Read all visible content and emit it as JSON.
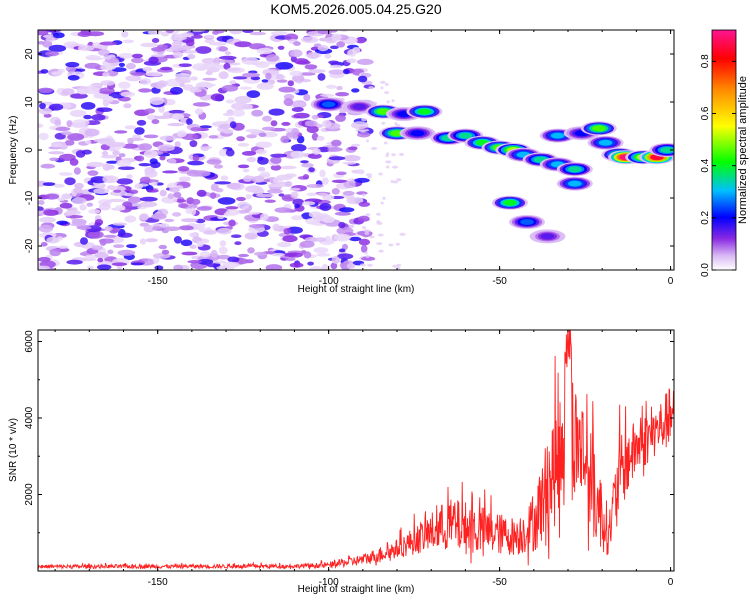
{
  "title": "KOM5.2026.005.04.25.G20",
  "colors": {
    "snr_line": "#ff2020",
    "axis": "#000000"
  },
  "chart_data": [
    {
      "type": "heatmap",
      "name": "spectrogram",
      "xlabel": "Height of straight line (km)",
      "ylabel": "Frequency (Hz)",
      "xlim": [
        -185,
        1
      ],
      "ylim": [
        -25,
        25
      ],
      "xticks": [
        -150,
        -100,
        -50,
        0
      ],
      "yticks": [
        -20,
        -10,
        0,
        10,
        20
      ],
      "xtick_labels": [
        "-150",
        "-100",
        "-50",
        "0"
      ],
      "ytick_labels": [
        "-20",
        "-10",
        "0",
        "10",
        "20"
      ],
      "noise_region_km": [
        -185,
        -88
      ],
      "features": [
        {
          "x": -100,
          "y": 9.5,
          "amp": 0.25
        },
        {
          "x": -91,
          "y": 9,
          "amp": 0.15
        },
        {
          "x": -84,
          "y": 8,
          "amp": 0.45
        },
        {
          "x": -78,
          "y": 7.5,
          "amp": 0.2
        },
        {
          "x": -72,
          "y": 8,
          "amp": 0.4
        },
        {
          "x": -80,
          "y": 3.5,
          "amp": 0.45
        },
        {
          "x": -74,
          "y": 3.5,
          "amp": 0.2
        },
        {
          "x": -65,
          "y": 2.5,
          "amp": 0.35
        },
        {
          "x": -60,
          "y": 3,
          "amp": 0.35
        },
        {
          "x": -55,
          "y": 1.5,
          "amp": 0.4
        },
        {
          "x": -50,
          "y": 0.5,
          "amp": 0.45
        },
        {
          "x": -46,
          "y": 0,
          "amp": 0.5
        },
        {
          "x": -43,
          "y": -1,
          "amp": 0.3
        },
        {
          "x": -38,
          "y": -2,
          "amp": 0.35
        },
        {
          "x": -33,
          "y": -3,
          "amp": 0.3
        },
        {
          "x": -28,
          "y": -4,
          "amp": 0.35
        },
        {
          "x": -28,
          "y": -7,
          "amp": 0.3
        },
        {
          "x": -47,
          "y": -11,
          "amp": 0.4
        },
        {
          "x": -42,
          "y": -15,
          "amp": 0.25
        },
        {
          "x": -36,
          "y": -18,
          "amp": 0.15
        },
        {
          "x": -33,
          "y": 3,
          "amp": 0.3
        },
        {
          "x": -26,
          "y": 3.5,
          "amp": 0.2
        },
        {
          "x": -21,
          "y": 4.5,
          "amp": 0.45
        },
        {
          "x": -19,
          "y": 1.5,
          "amp": 0.3
        },
        {
          "x": -15,
          "y": -1,
          "amp": 0.45
        },
        {
          "x": -13,
          "y": -1.5,
          "amp": 0.9
        },
        {
          "x": -8,
          "y": -1.5,
          "amp": 0.5
        },
        {
          "x": -4,
          "y": -1.5,
          "amp": 0.85
        },
        {
          "x": -1,
          "y": 0,
          "amp": 0.35
        }
      ]
    },
    {
      "type": "colorbar",
      "name": "amplitude-colorbar",
      "label": "Normalized spectral amplitude",
      "range": [
        0,
        0.92
      ],
      "ticks": [
        0.0,
        0.2,
        0.4,
        0.6,
        0.8
      ],
      "tick_labels": [
        "0.0",
        "0.2",
        "0.4",
        "0.6",
        "0.8"
      ]
    },
    {
      "type": "line",
      "name": "snr",
      "xlabel": "Height of straight line (km)",
      "ylabel": "SNR (10 * v/v)",
      "xlim": [
        -185,
        1
      ],
      "ylim": [
        0,
        6300
      ],
      "xticks": [
        -150,
        -100,
        -50,
        0
      ],
      "yticks": [
        2000,
        4000,
        6000
      ],
      "xtick_labels": [
        "-150",
        "-100",
        "-50",
        "0"
      ],
      "ytick_labels": [
        "2000",
        "4000",
        "6000"
      ],
      "envelope": [
        {
          "x": -185,
          "base": 100,
          "amp": 100
        },
        {
          "x": -110,
          "base": 110,
          "amp": 110
        },
        {
          "x": -100,
          "base": 130,
          "amp": 150
        },
        {
          "x": -90,
          "base": 250,
          "amp": 300
        },
        {
          "x": -80,
          "base": 500,
          "amp": 500
        },
        {
          "x": -72,
          "base": 800,
          "amp": 900
        },
        {
          "x": -65,
          "base": 1000,
          "amp": 1400
        },
        {
          "x": -58,
          "base": 900,
          "amp": 1400
        },
        {
          "x": -50,
          "base": 800,
          "amp": 1100
        },
        {
          "x": -45,
          "base": 750,
          "amp": 1000
        },
        {
          "x": -40,
          "base": 1000,
          "amp": 1500
        },
        {
          "x": -35,
          "base": 2000,
          "amp": 3000
        },
        {
          "x": -30,
          "base": 3000,
          "amp": 3300
        },
        {
          "x": -26,
          "base": 2800,
          "amp": 3000
        },
        {
          "x": -22,
          "base": 1500,
          "amp": 2500
        },
        {
          "x": -18,
          "base": 800,
          "amp": 1200
        },
        {
          "x": -15,
          "base": 2200,
          "amp": 2000
        },
        {
          "x": -10,
          "base": 3000,
          "amp": 1500
        },
        {
          "x": -5,
          "base": 3400,
          "amp": 1300
        },
        {
          "x": 0,
          "base": 3800,
          "amp": 1600
        }
      ]
    }
  ]
}
